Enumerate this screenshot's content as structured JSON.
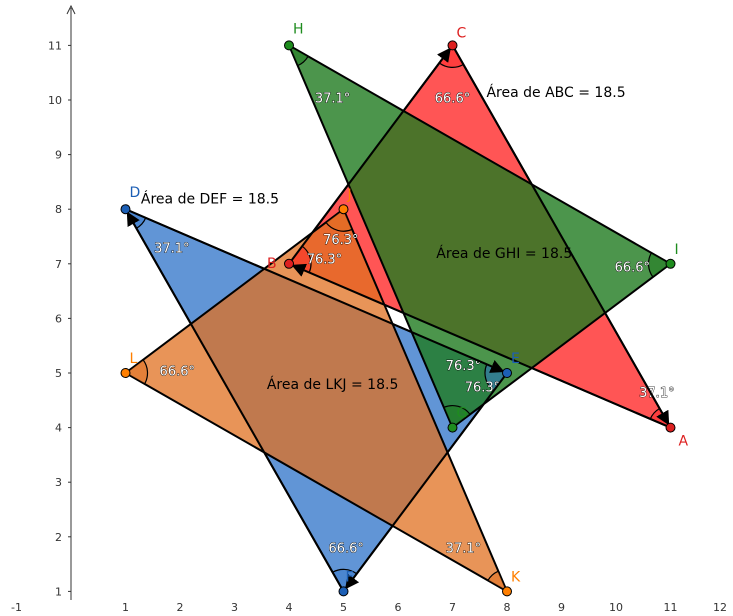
{
  "coordinate_system": {
    "x_range": [
      -1,
      12
    ],
    "y_range": [
      1,
      11
    ]
  },
  "x_ticks": [
    "-1",
    "1",
    "2",
    "3",
    "4",
    "5",
    "6",
    "7",
    "8",
    "9",
    "10",
    "11",
    "12"
  ],
  "y_ticks": [
    "1",
    "2",
    "3",
    "4",
    "5",
    "6",
    "7",
    "8",
    "9",
    "10",
    "11"
  ],
  "points": {
    "A": {
      "x": 11,
      "y": 4,
      "color": "#dd2020"
    },
    "B": {
      "x": 4,
      "y": 7,
      "color": "#dd2020"
    },
    "C": {
      "x": 7,
      "y": 11,
      "color": "#dd2020"
    },
    "D": {
      "x": 1,
      "y": 8,
      "color": "#1c5fb5"
    },
    "E": {
      "x": 8,
      "y": 5,
      "color": "#1c5fb5"
    },
    "F": {
      "x": 5,
      "y": 1,
      "color": "#1c5fb5"
    },
    "G": {
      "x": 7,
      "y": 4,
      "color": "#1e8c1e"
    },
    "H": {
      "x": 4,
      "y": 11,
      "color": "#1e8c1e"
    },
    "I": {
      "x": 11,
      "y": 7,
      "color": "#1e8c1e"
    },
    "J": {
      "x": 5,
      "y": 8,
      "color": "#ff7f00"
    },
    "K": {
      "x": 8,
      "y": 1,
      "color": "#ff7f00"
    },
    "L": {
      "x": 1,
      "y": 5,
      "color": "#ff7f00"
    }
  },
  "triangles": [
    {
      "name": "ABC",
      "vertices": [
        "A",
        "B",
        "C"
      ],
      "fill": "#ff2b2b",
      "opacity": 0.8
    },
    {
      "name": "DEF",
      "vertices": [
        "D",
        "E",
        "F"
      ],
      "fill": "#3a7acc",
      "opacity": 0.8
    },
    {
      "name": "GHI",
      "vertices": [
        "G",
        "H",
        "I"
      ],
      "fill": "#1f7a1f",
      "opacity": 0.8
    },
    {
      "name": "LKJ",
      "vertices": [
        "L",
        "K",
        "J"
      ],
      "fill": "#e07020",
      "opacity": 0.75
    }
  ],
  "vectors": [
    {
      "from": "A",
      "to": "B",
      "tri": "ABC"
    },
    {
      "from": "B",
      "to": "C",
      "tri": "ABC"
    },
    {
      "from": "C",
      "to": "A",
      "tri": "ABC"
    },
    {
      "from": "D",
      "to": "E",
      "tri": "DEF"
    },
    {
      "from": "E",
      "to": "F",
      "tri": "DEF"
    },
    {
      "from": "F",
      "to": "D",
      "tri": "DEF"
    }
  ],
  "angles": [
    {
      "vertex": "C",
      "label": "66.6°",
      "x": 7.0,
      "y": 10.05
    },
    {
      "vertex": "A",
      "label": "37.1°",
      "x": 10.75,
      "y": 4.65
    },
    {
      "vertex": "B",
      "label": "76.3°",
      "x": 4.65,
      "y": 7.1
    },
    {
      "vertex": "D",
      "label": "37.1°",
      "x": 1.85,
      "y": 7.3
    },
    {
      "vertex": "E",
      "label": "76.3°",
      "x": 7.2,
      "y": 5.15
    },
    {
      "vertex": "F",
      "label": "66.6°",
      "x": 5.05,
      "y": 1.8
    },
    {
      "vertex": "H",
      "label": "37.1°",
      "x": 4.8,
      "y": 10.05
    },
    {
      "vertex": "I",
      "label": "66.6°",
      "x": 10.3,
      "y": 6.95
    },
    {
      "vertex": "G",
      "label": "76.3°",
      "x": 7.55,
      "y": 4.75
    },
    {
      "vertex": "J",
      "label": "76.3°",
      "x": 4.95,
      "y": 7.45
    },
    {
      "vertex": "L",
      "label": "66.6°",
      "x": 1.95,
      "y": 5.05
    },
    {
      "vertex": "K",
      "label": "37.1°",
      "x": 7.2,
      "y": 1.8
    }
  ],
  "area_labels": [
    {
      "text": "Área de  ABC = 18.5",
      "x": 8.9,
      "y": 10.15
    },
    {
      "text": "Área de  DEF = 18.5",
      "x": 2.55,
      "y": 8.2
    },
    {
      "text": "Área de  GHI = 18.5",
      "x": 7.95,
      "y": 7.2
    },
    {
      "text": "Área de  LKJ = 18.5",
      "x": 4.8,
      "y": 4.8
    }
  ]
}
